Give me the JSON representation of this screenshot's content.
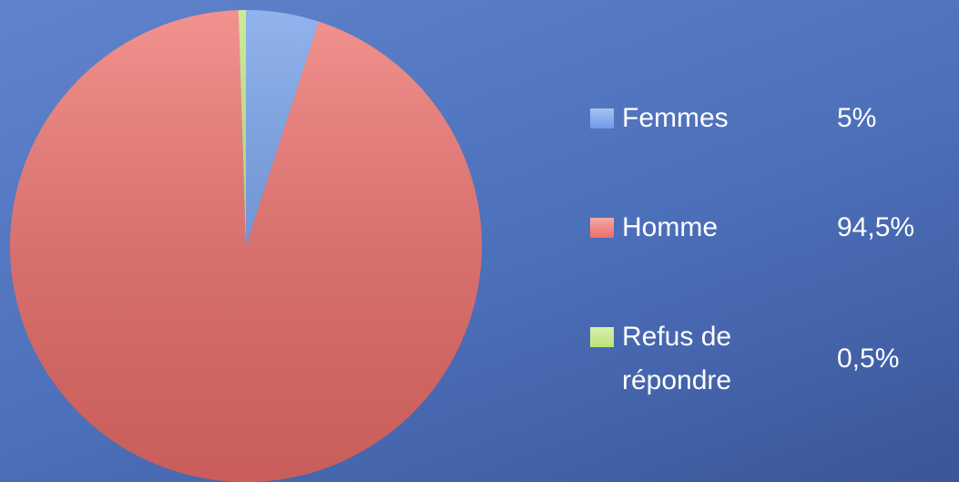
{
  "chart_data": {
    "type": "pie",
    "categories": [
      "Femmes",
      "Homme",
      "Refus de répondre"
    ],
    "values": [
      5,
      94.5,
      0.5
    ],
    "value_labels": [
      "5%",
      "94,5%",
      "0,5%"
    ],
    "colors": [
      "#6d9be8",
      "#ee6e6a",
      "#bde37a"
    ]
  }
}
